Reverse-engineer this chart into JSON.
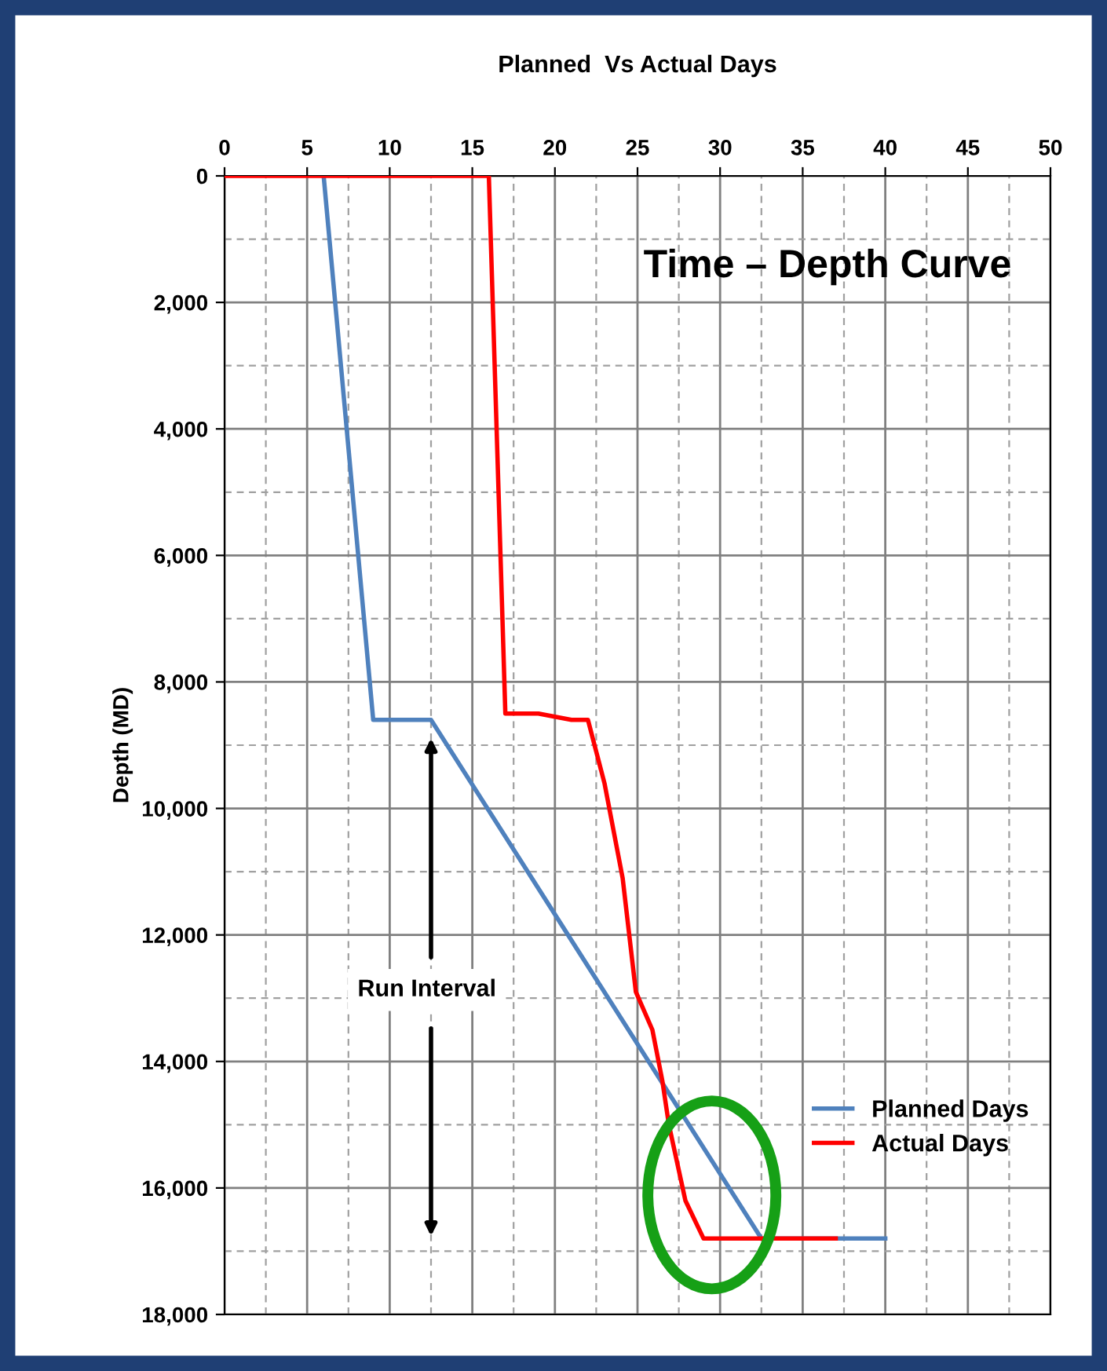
{
  "chart_data": {
    "type": "line",
    "title": "Planned  Vs Actual Days",
    "ylabel": "Depth (MD)",
    "series": [
      {
        "name": "Planned Days",
        "color": "#4f81bd",
        "x": [
          6,
          9,
          12.5,
          32.5,
          40
        ],
        "values": [
          0,
          8600,
          8600,
          16800,
          16800
        ]
      },
      {
        "name": "Actual Days",
        "color": "#ff0000",
        "x": [
          0,
          16,
          17,
          19,
          21,
          22,
          23,
          24.1,
          24.9,
          25.9,
          26.5,
          26.9,
          27.9,
          29,
          37
        ],
        "values": [
          0,
          0,
          8500,
          8500,
          8600,
          8600,
          9600,
          11100,
          12900,
          13500,
          14300,
          15000,
          16200,
          16800,
          16800
        ]
      }
    ],
    "xlim": [
      0,
      50
    ],
    "xticks": [
      0,
      5,
      10,
      15,
      20,
      25,
      30,
      35,
      40,
      45,
      50
    ],
    "ylim": [
      18000,
      0
    ],
    "yticks": [
      {
        "value": 0,
        "label": "0"
      },
      {
        "value": 2000,
        "label": "2,000"
      },
      {
        "value": 4000,
        "label": "4,000"
      },
      {
        "value": 6000,
        "label": "6,000"
      },
      {
        "value": 8000,
        "label": "8,000"
      },
      {
        "value": 10000,
        "label": "10,000"
      },
      {
        "value": 12000,
        "label": "12,000"
      },
      {
        "value": 14000,
        "label": "14,000"
      },
      {
        "value": 16000,
        "label": "16,000"
      },
      {
        "value": 18000,
        "label": "18,000"
      }
    ],
    "grid": true,
    "legend": "bottom right",
    "marker": "none",
    "line_style": "solid",
    "annotations": [
      "Time – Depth Curve",
      "Run Interval"
    ]
  }
}
